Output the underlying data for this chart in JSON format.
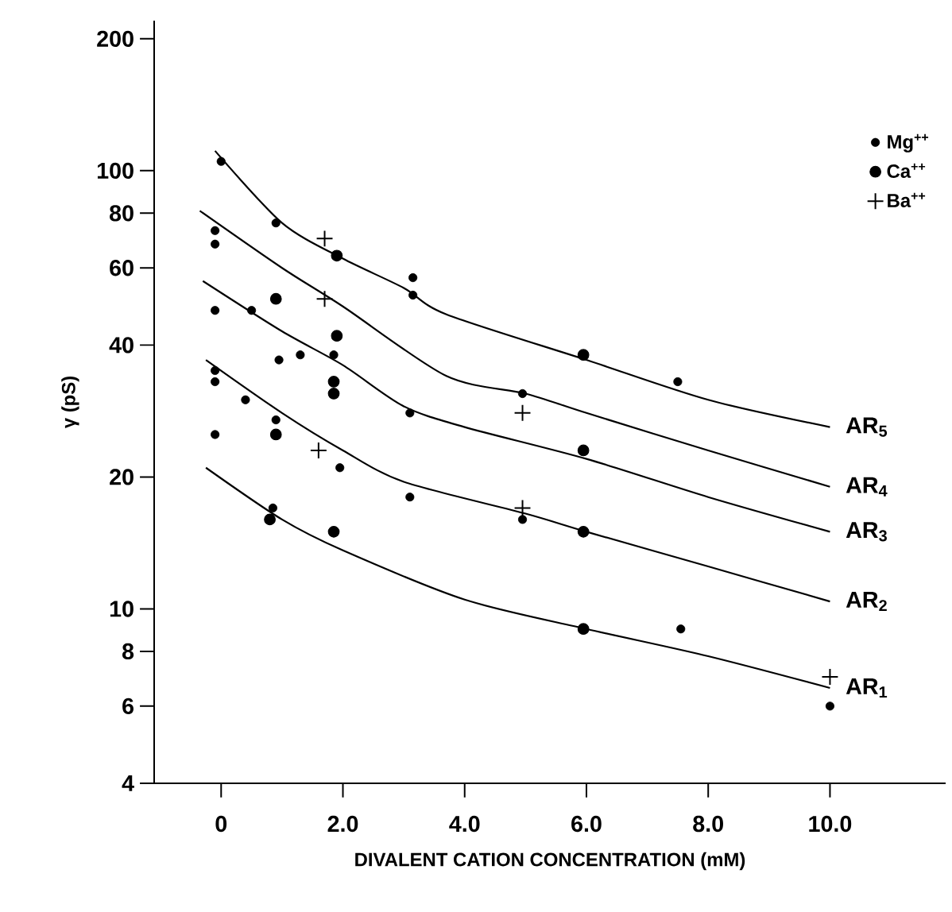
{
  "chart_data": {
    "type": "scatter",
    "xlabel": "DIVALENT CATION CONCENTRATION (mM)",
    "ylabel": "γ (pS)",
    "log": "y",
    "xlim": [
      -1.1,
      11.9
    ],
    "ylim": [
      4,
      220
    ],
    "xticks": [
      0,
      {
        "value": 2,
        "label": "2.0"
      },
      {
        "value": 4,
        "label": "4.0"
      },
      {
        "value": 6,
        "label": "6.0"
      },
      {
        "value": 8,
        "label": "8.0"
      },
      {
        "value": 10,
        "label": "10.0"
      }
    ],
    "yticks": [
      4,
      6,
      8,
      10,
      20,
      40,
      60,
      80,
      100,
      200
    ],
    "legend": "top right",
    "series": [
      {
        "name": "Mg$^{++}$",
        "color": "#000000",
        "marker": "circle",
        "x": [
          0,
          -0.1,
          -0.1,
          -0.1,
          -0.1,
          -0.1,
          -0.1,
          0.4,
          0.5,
          0.9,
          0.95,
          0.9,
          1.3,
          1.85,
          1.95,
          3.15,
          3.15,
          3.1,
          3.1,
          0.85,
          4.95,
          4.95,
          7.5,
          7.55,
          10
        ],
        "values": [
          105,
          73,
          68,
          48,
          35,
          33,
          25,
          30,
          48,
          76,
          37,
          27,
          38,
          38,
          21,
          57,
          52,
          28,
          18,
          17,
          31,
          16,
          33,
          9,
          6
        ]
      },
      {
        "name": "Ca$^{++}$",
        "color": "#000000",
        "marker": "circle",
        "x": [
          0.9,
          1.9,
          1.9,
          1.85,
          1.85,
          0.9,
          0.8,
          1.85,
          5.95,
          5.95,
          5.95,
          5.95
        ],
        "values": [
          51,
          64,
          42,
          33,
          31,
          25,
          16,
          15,
          38,
          23,
          15,
          9
        ]
      },
      {
        "name": "Ba$^{++}$",
        "color": "#000000",
        "marker": "cross",
        "x": [
          1.7,
          1.7,
          1.6,
          4.95,
          4.95,
          10
        ],
        "values": [
          70,
          51,
          23,
          28,
          17,
          7
        ]
      },
      {
        "name": "AR$_{5}$",
        "type": "line",
        "color": "#000000",
        "marker": "none",
        "x": [
          -0.1,
          1,
          2,
          3,
          3.7,
          6,
          8,
          10
        ],
        "values": [
          111,
          76,
          63,
          54,
          47,
          37,
          30,
          26
        ]
      },
      {
        "name": "AR$_{4}$",
        "type": "line",
        "color": "#000000",
        "marker": "none",
        "x": [
          -0.35,
          1,
          2,
          3.7,
          5,
          6,
          8,
          10
        ],
        "values": [
          81,
          60,
          49,
          34,
          31,
          28,
          23,
          19
        ]
      },
      {
        "name": "AR$_{3}$",
        "type": "line",
        "color": "#000000",
        "marker": "none",
        "x": [
          -0.3,
          1,
          2,
          3,
          4,
          6,
          8,
          10
        ],
        "values": [
          56,
          43,
          36,
          29,
          26,
          22,
          18,
          15
        ]
      },
      {
        "name": "AR$_{2}$",
        "type": "line",
        "color": "#000000",
        "marker": "none",
        "x": [
          -0.25,
          1,
          2,
          3,
          5,
          6,
          8,
          10
        ],
        "values": [
          37,
          28,
          23,
          19.5,
          16.5,
          15,
          12.5,
          10.4
        ]
      },
      {
        "name": "AR$_{1}$",
        "type": "line",
        "color": "#000000",
        "marker": "none",
        "x": [
          -0.25,
          1,
          2,
          4,
          6,
          8,
          10
        ],
        "values": [
          21,
          16,
          13.6,
          10.5,
          9,
          7.8,
          6.6
        ]
      }
    ]
  }
}
